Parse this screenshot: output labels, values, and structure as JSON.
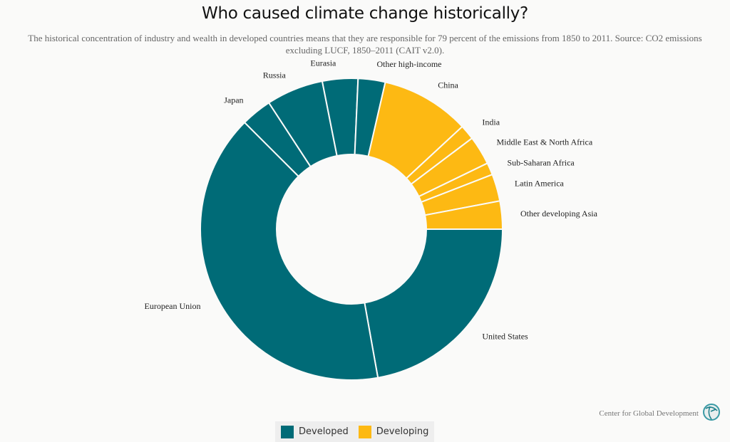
{
  "title": "Who caused climate change historically?",
  "subtitle": "The historical concentration of industry and wealth in developed countries means that they are responsible for 79 percent of the emissions from 1850 to 2011. Source: CO2 emissions excluding LUCF, 1850–2011 (CAIT v2.0).",
  "credit": "Center for Global Development",
  "colors": {
    "Developed": "#006b77",
    "Developing": "#fdb913"
  },
  "chart_data": {
    "type": "pie",
    "donut": true,
    "unit": "percent of cumulative CO2 emissions (estimated)",
    "slices": [
      {
        "label": "United States",
        "group": "Developed",
        "value": 22.2
      },
      {
        "label": "European Union",
        "group": "Developed",
        "value": 40.3
      },
      {
        "label": "Japan",
        "group": "Developed",
        "value": 3.3
      },
      {
        "label": "Russia",
        "group": "Developed",
        "value": 6.1
      },
      {
        "label": "Eurasia",
        "group": "Developed",
        "value": 3.8
      },
      {
        "label": "Other high-income",
        "group": "Developed",
        "value": 2.9
      },
      {
        "label": "China",
        "group": "Developing",
        "value": 9.5
      },
      {
        "label": "India",
        "group": "Developing",
        "value": 1.6
      },
      {
        "label": "Middle East & North Africa",
        "group": "Developing",
        "value": 3.1
      },
      {
        "label": "Sub-Saharan Africa",
        "group": "Developing",
        "value": 1.3
      },
      {
        "label": "Latin America",
        "group": "Developing",
        "value": 2.9
      },
      {
        "label": "Other developing Asia",
        "group": "Developing",
        "value": 3.0
      }
    ],
    "legend": {
      "placement": "bottom",
      "entries": [
        "Developed",
        "Developing"
      ]
    }
  }
}
